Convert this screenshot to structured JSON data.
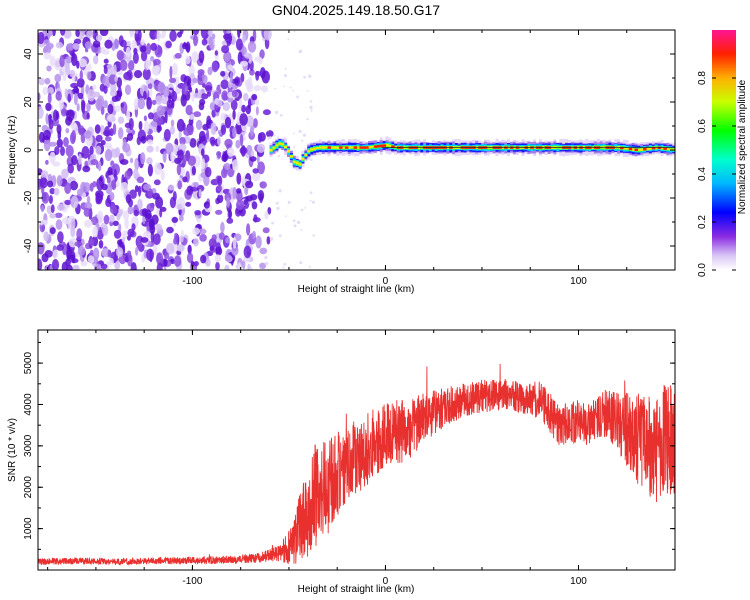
{
  "figure": {
    "title": "GN04.2025.149.18.50.G17"
  },
  "chart_data": [
    {
      "type": "heatmap",
      "title": "GN04.2025.149.18.50.G17",
      "xlabel": "Height of straight line (km)",
      "ylabel": "Frequency (Hz)",
      "xlim": [
        -180,
        150
      ],
      "ylim": [
        -50,
        50
      ],
      "x_ticks": [
        -100,
        0,
        100
      ],
      "x_tick_labels": [
        "-100",
        "0",
        "100"
      ],
      "y_ticks": [
        -40,
        -20,
        0,
        20,
        40
      ],
      "y_tick_labels": [
        "-40",
        "-20",
        "0",
        "20",
        "40"
      ],
      "grid": false,
      "noise_region_x": [
        -180,
        -60
      ],
      "ridge": {
        "x": [
          -60,
          -55,
          -52,
          -50,
          -48,
          -45,
          -43,
          -40,
          -35,
          -30,
          -20,
          -10,
          0,
          5,
          10,
          20,
          40,
          60,
          80,
          100,
          120,
          130,
          140,
          150
        ],
        "frequency": [
          0,
          3,
          1,
          -2,
          -5,
          -6,
          -3,
          0,
          1,
          1,
          1,
          1,
          2,
          1,
          1,
          1,
          1,
          1,
          1,
          1,
          1,
          0,
          1,
          0
        ]
      },
      "colorbar": {
        "label": "Normalized spectral amplitude",
        "range": [
          0.0,
          1.0
        ],
        "ticks": [
          0.0,
          0.2,
          0.4,
          0.6,
          0.8
        ],
        "tick_labels": [
          "0.0",
          "0.2",
          "0.4",
          "0.6",
          "0.8"
        ],
        "colors": [
          "#e8d8f8",
          "#8a2be2",
          "#0000ff",
          "#00ffff",
          "#00ff00",
          "#ffff00",
          "#ff8c00",
          "#ff0000",
          "#ff1493"
        ]
      }
    },
    {
      "type": "line",
      "xlabel": "Height of straight line (km)",
      "ylabel": "SNR (10 * v/v)",
      "xlim": [
        -180,
        150
      ],
      "ylim": [
        0,
        5800
      ],
      "x_ticks": [
        -100,
        0,
        100
      ],
      "x_tick_labels": [
        "-100",
        "0",
        "100"
      ],
      "y_ticks": [
        1000,
        2000,
        3000,
        4000,
        5000
      ],
      "y_tick_labels": [
        "1000",
        "2000",
        "3000",
        "4000",
        "5000"
      ],
      "grid": false,
      "color": "#e8302e",
      "series": [
        {
          "x": [
            -180,
            -160,
            -140,
            -120,
            -100,
            -80,
            -65,
            -55,
            -48,
            -44,
            -40,
            -36,
            -32,
            -28,
            -24,
            -20,
            -15,
            -10,
            -5,
            0,
            5,
            10,
            15,
            20,
            30,
            40,
            50,
            60,
            70,
            80,
            85,
            90,
            95,
            100,
            105,
            110,
            115,
            120,
            125,
            130,
            135,
            140,
            145,
            150
          ],
          "y": [
            200,
            220,
            200,
            220,
            230,
            250,
            300,
            400,
            600,
            1100,
            1500,
            1800,
            1900,
            2100,
            2400,
            2600,
            2700,
            2900,
            3100,
            3300,
            3400,
            3300,
            3500,
            3700,
            3900,
            4100,
            4200,
            4250,
            4150,
            4100,
            3800,
            3500,
            3550,
            3600,
            3500,
            3700,
            3800,
            3600,
            3400,
            3200,
            3100,
            2800,
            3200,
            3000
          ],
          "noise_amplitude": [
            80,
            80,
            80,
            80,
            90,
            100,
            120,
            200,
            500,
            900,
            1200,
            1300,
            1200,
            1100,
            1000,
            1000,
            900,
            900,
            850,
            800,
            800,
            800,
            700,
            600,
            500,
            400,
            400,
            400,
            400,
            450,
            500,
            500,
            500,
            550,
            500,
            500,
            600,
            700,
            900,
            1100,
            1200,
            1300,
            1400,
            1400
          ]
        }
      ]
    }
  ]
}
